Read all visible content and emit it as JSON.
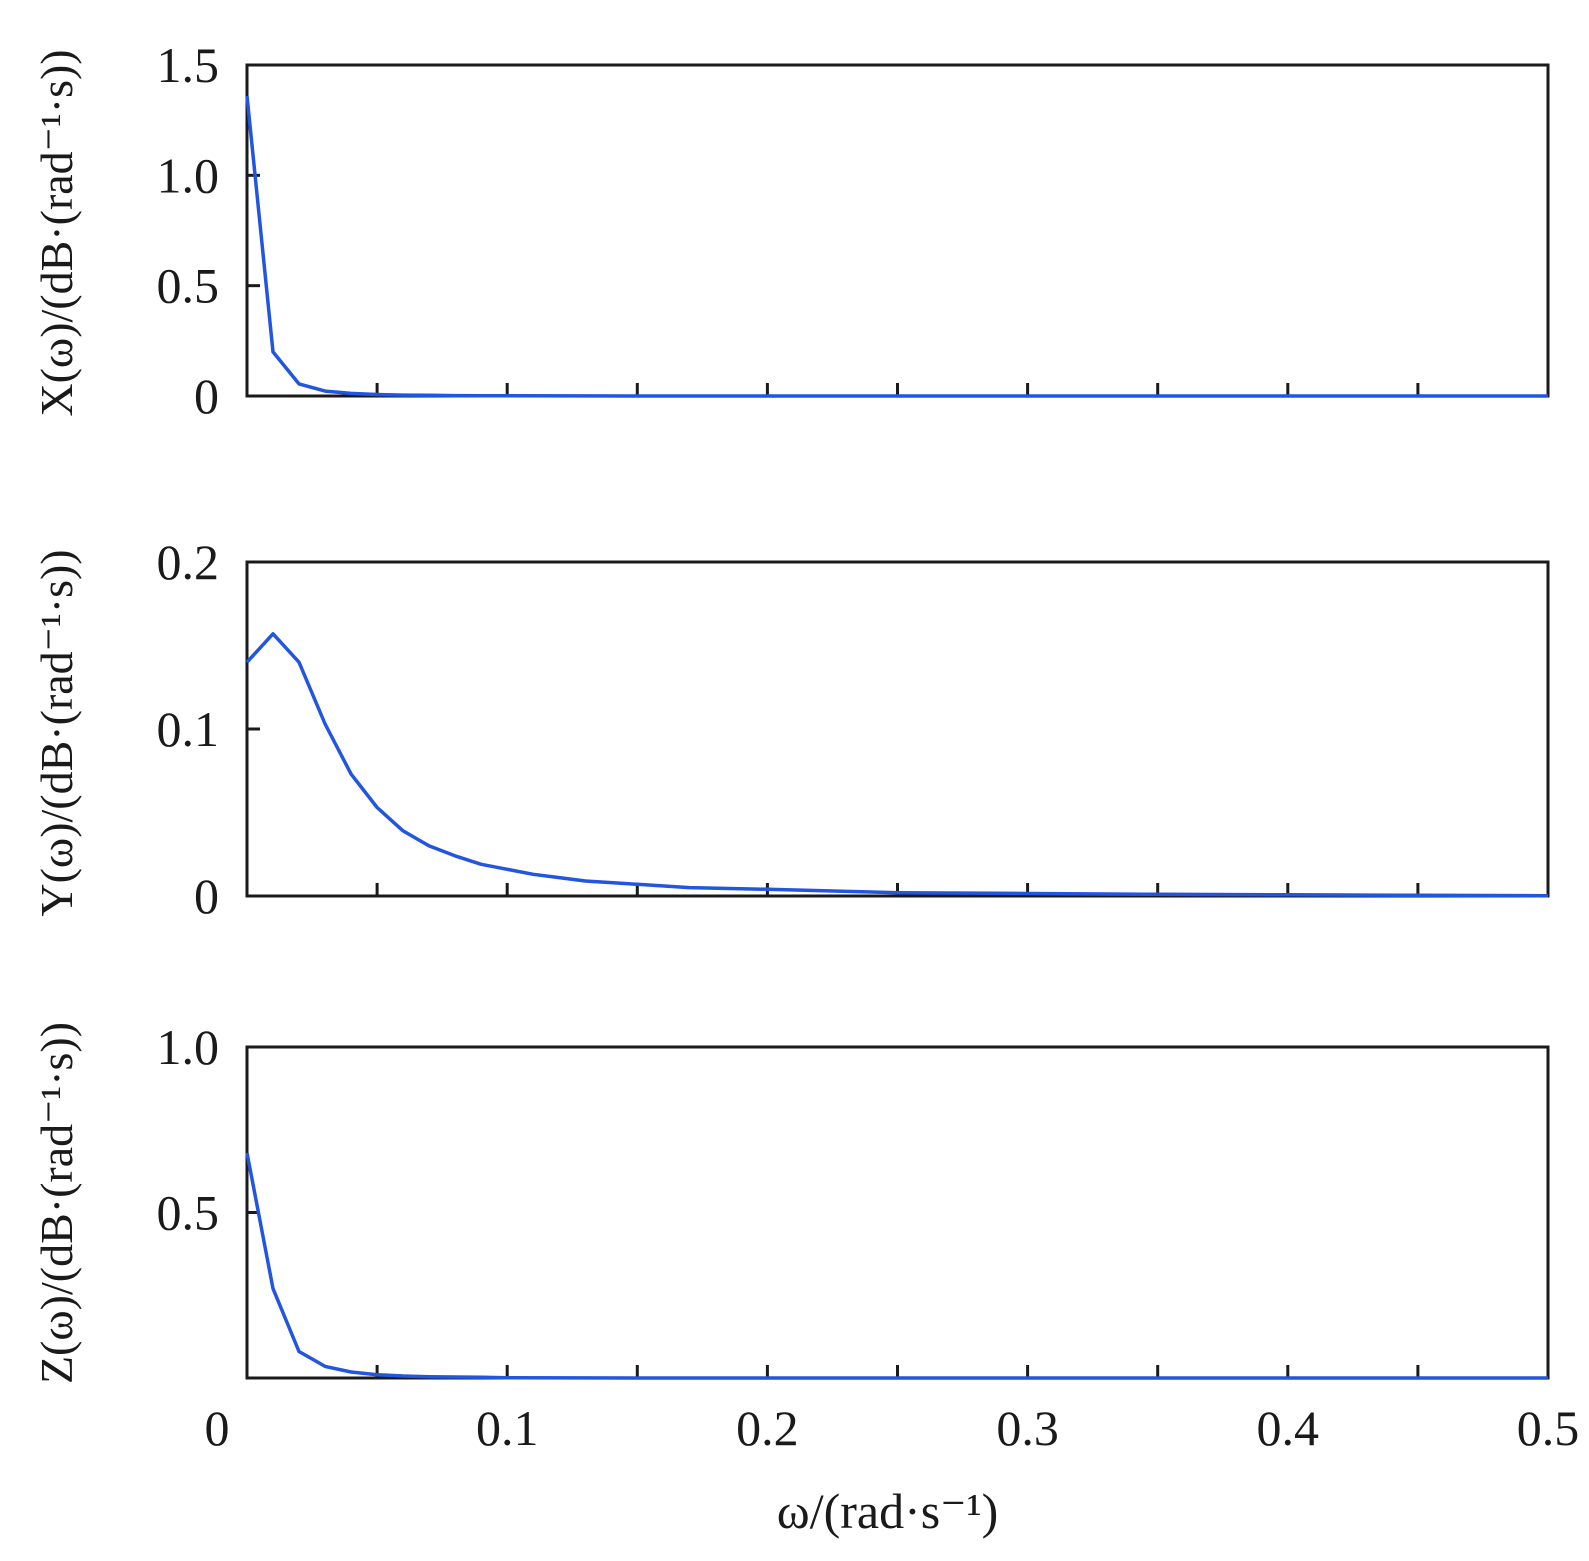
{
  "chart_data": [
    {
      "type": "line",
      "ylabel": "X(ω)/(dB·(rad⁻¹·s))",
      "xlim": [
        0,
        0.5
      ],
      "ylim": [
        0,
        1.5
      ],
      "yticks": [
        0,
        0.5,
        1.0,
        1.5
      ],
      "ytick_labels": [
        "0",
        "0.5",
        "1.0",
        "1.5"
      ],
      "series": [
        {
          "color": "#2255e0",
          "x": [
            0,
            0.01,
            0.02,
            0.03,
            0.04,
            0.05,
            0.06,
            0.07,
            0.08,
            0.09,
            0.1,
            0.15,
            0.2,
            0.25,
            0.3,
            0.35,
            0.4,
            0.45,
            0.5
          ],
          "y": [
            1.36,
            0.2,
            0.055,
            0.022,
            0.012,
            0.007,
            0.004,
            0.003,
            0.002,
            0.001,
            0.001,
            0,
            0,
            0,
            0,
            0,
            0,
            0,
            0
          ]
        }
      ]
    },
    {
      "type": "line",
      "ylabel": "Y(ω)/(dB·(rad⁻¹·s))",
      "xlim": [
        0,
        0.5
      ],
      "ylim": [
        0,
        0.2
      ],
      "yticks": [
        0,
        0.1,
        0.2
      ],
      "ytick_labels": [
        "0",
        "0.1",
        "0.2"
      ],
      "series": [
        {
          "color": "#2255e0",
          "x": [
            0,
            0.01,
            0.02,
            0.03,
            0.04,
            0.05,
            0.06,
            0.07,
            0.08,
            0.09,
            0.1,
            0.11,
            0.12,
            0.13,
            0.14,
            0.15,
            0.17,
            0.2,
            0.25,
            0.3,
            0.35,
            0.4,
            0.45,
            0.5
          ],
          "y": [
            0.14,
            0.157,
            0.14,
            0.103,
            0.073,
            0.053,
            0.039,
            0.03,
            0.024,
            0.019,
            0.016,
            0.013,
            0.011,
            0.009,
            0.008,
            0.007,
            0.005,
            0.004,
            0.002,
            0.0015,
            0.001,
            0.0007,
            0.0004,
            0.0002
          ]
        }
      ]
    },
    {
      "type": "line",
      "ylabel": "Z(ω)/(dB·(rad⁻¹·s))",
      "xlabel": "ω/(rad·s⁻¹)",
      "xlim": [
        0,
        0.5
      ],
      "ylim": [
        0,
        1.0
      ],
      "yticks": [
        0.5,
        1.0
      ],
      "ytick_labels": [
        "0.5",
        "1.0"
      ],
      "xticks": [
        0,
        0.1,
        0.2,
        0.3,
        0.4,
        0.5
      ],
      "xtick_labels": [
        "0",
        "0.1",
        "0.2",
        "0.3",
        "0.4",
        "0.5"
      ],
      "series": [
        {
          "color": "#2255e0",
          "x": [
            0,
            0.01,
            0.02,
            0.03,
            0.04,
            0.05,
            0.06,
            0.07,
            0.08,
            0.09,
            0.1,
            0.15,
            0.2,
            0.25,
            0.3,
            0.35,
            0.4,
            0.45,
            0.5
          ],
          "y": [
            0.68,
            0.27,
            0.08,
            0.035,
            0.018,
            0.01,
            0.006,
            0.004,
            0.003,
            0.002,
            0.001,
            0,
            0,
            0,
            0,
            0,
            0,
            0,
            0
          ]
        }
      ]
    }
  ],
  "xminor_ticks": [
    0.05,
    0.1,
    0.15,
    0.2,
    0.25,
    0.3,
    0.35,
    0.4,
    0.45
  ]
}
